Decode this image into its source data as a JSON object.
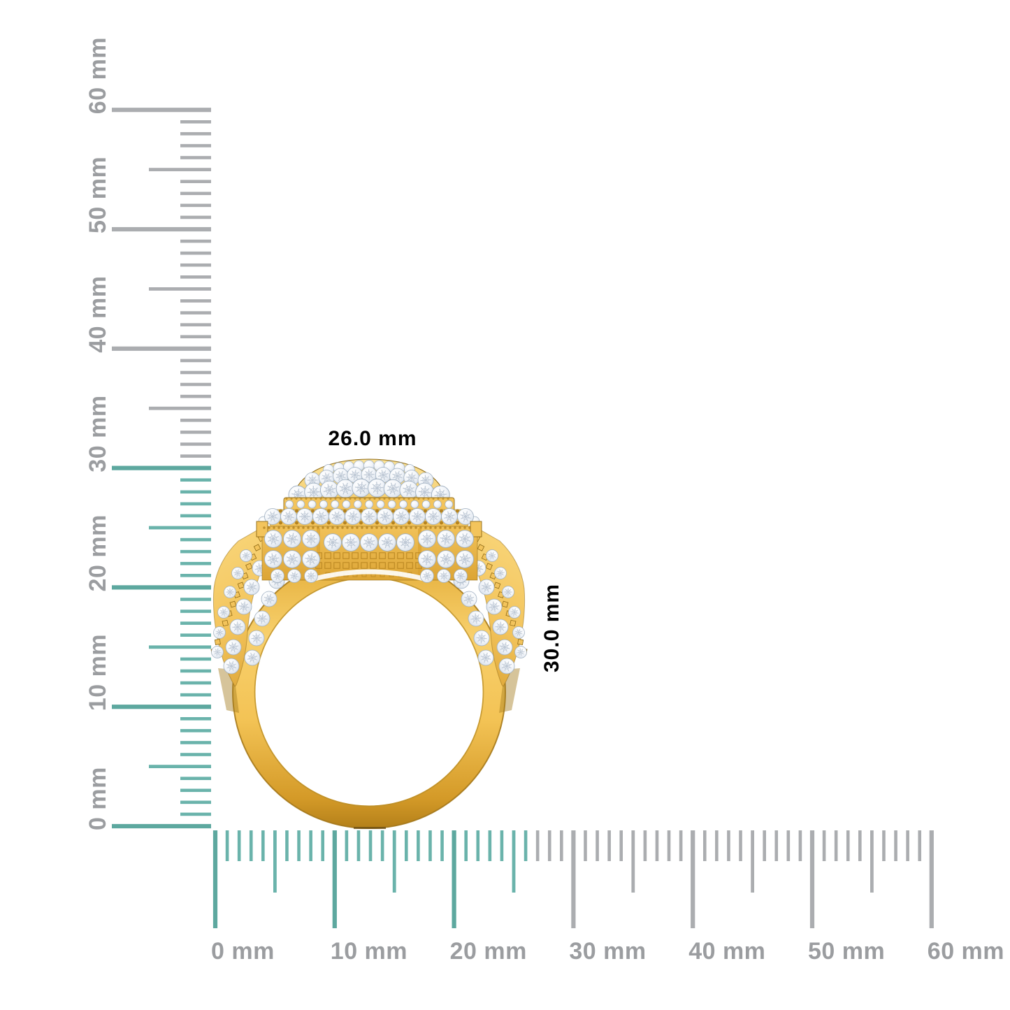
{
  "page": {
    "background": "#ffffff"
  },
  "colors": {
    "tick_teal": "#6ab3ab",
    "tick_teal_dark": "#5da89f",
    "tick_gray": "#abadb0",
    "label_gray": "#9b9da0",
    "gold_light": "#fce59c",
    "gold_mid": "#f3c45c",
    "gold_deep": "#d89f2e",
    "gold_dark": "#b5831e",
    "gold_edge": "#8f6a15",
    "diamond_stroke": "#9fafc0",
    "diamond_facet": "#b7c2d0",
    "white": "#ffffff"
  },
  "vertical_ruler": {
    "unit": "mm",
    "min": 0,
    "max": 60,
    "minor_step": 1,
    "medium_step": 5,
    "major_step": 10,
    "teal_up_to": 30,
    "labels": [
      "0 mm",
      "10 mm",
      "20 mm",
      "30 mm",
      "40 mm",
      "50 mm",
      "60 mm"
    ]
  },
  "horizontal_ruler": {
    "unit": "mm",
    "min": 0,
    "max": 60,
    "minor_step": 1,
    "medium_step": 5,
    "major_step": 10,
    "teal_up_to": 26,
    "labels": [
      "0 mm",
      "10 mm",
      "20 mm",
      "30 mm",
      "40 mm",
      "50 mm",
      "60 mm"
    ]
  },
  "ring": {
    "width_label": "26.0 mm",
    "height_label": "30.0 mm"
  }
}
